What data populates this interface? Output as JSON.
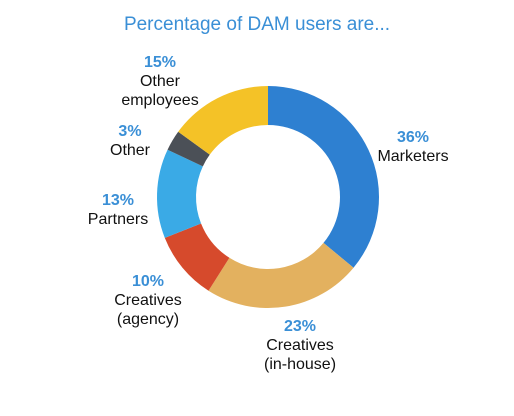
{
  "chart_data": {
    "type": "donut",
    "title": "Percentage of DAM users are...",
    "categories": [
      "Marketers",
      "Creatives\n(in-house)",
      "Creatives\n(agency)",
      "Partners",
      "Other",
      "Other\nemployees"
    ],
    "values": [
      36,
      23,
      10,
      13,
      3,
      15
    ],
    "value_labels": [
      "36%",
      "23%",
      "10%",
      "13%",
      "3%",
      "15%"
    ],
    "colors": [
      "#2e80d1",
      "#e3b15f",
      "#d64a2c",
      "#3aaae6",
      "#4b5057",
      "#f4c227"
    ]
  }
}
